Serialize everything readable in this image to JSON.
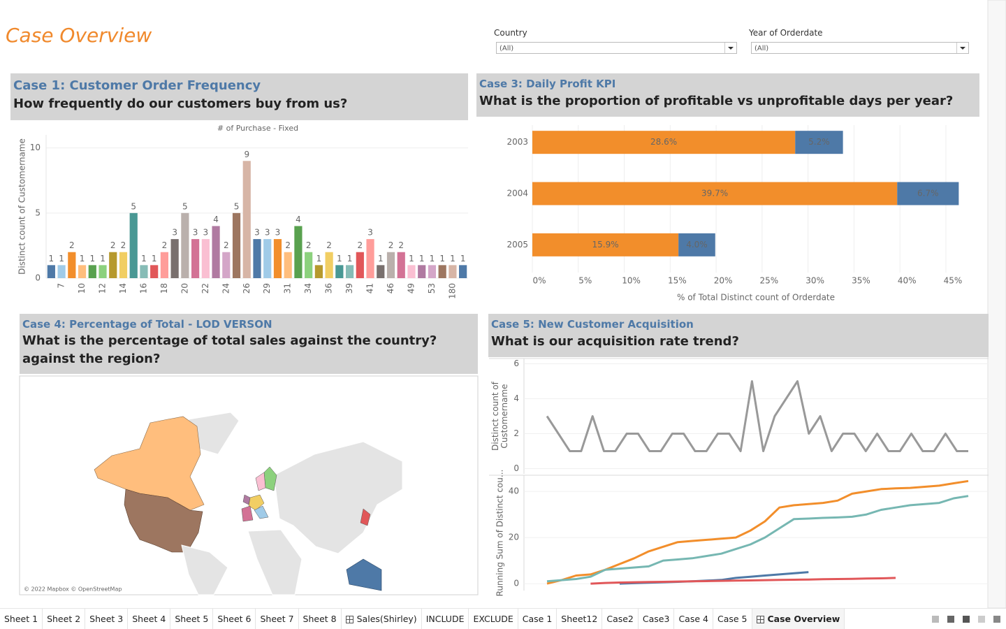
{
  "header": {
    "title": "Case Overview"
  },
  "filters": [
    {
      "label": "Country",
      "value": "(All)"
    },
    {
      "label": "Year of Orderdate",
      "value": "(All)"
    }
  ],
  "panels": [
    {
      "heading": "Case 1: Customer Order Frequency",
      "question": "How frequently do our customers buy from us?"
    },
    {
      "heading": "Case 3: Daily Profit KPI",
      "question": "What is the proportion of profitable vs unprofitable days per year?"
    },
    {
      "heading": "Case 4: Percentage of Total - LOD VERSON",
      "question": "What is the percentage of total sales against the country?against the region?"
    },
    {
      "heading": "Case 5: New Customer Acquisition",
      "question": "What is our acquisition rate trend?"
    }
  ],
  "map": {
    "attribution": "© 2022 Mapbox © OpenStreetMap"
  },
  "chart_data": [
    {
      "type": "bar",
      "title": "# of Purchase - Fixed",
      "y_label": "Distinct count of Customername",
      "categories": [
        null,
        "7",
        null,
        "10",
        null,
        "12",
        null,
        "14",
        null,
        "16",
        null,
        "18",
        null,
        "20",
        null,
        "22",
        null,
        "24",
        null,
        "26",
        null,
        "29",
        null,
        "31",
        null,
        "34",
        null,
        "36",
        null,
        "39",
        null,
        "41",
        null,
        "46",
        null,
        "49",
        null,
        "53",
        null,
        "180",
        null
      ],
      "values": [
        1,
        1,
        2,
        1,
        1,
        1,
        2,
        2,
        5,
        1,
        1,
        2,
        3,
        5,
        3,
        3,
        4,
        2,
        5,
        9,
        3,
        3,
        3,
        2,
        4,
        2,
        1,
        2,
        1,
        1,
        2,
        3,
        1,
        2,
        2,
        1,
        1,
        1,
        1,
        1,
        1
      ],
      "colors": [
        "#4e79a7",
        "#a0cbe8",
        "#f28e2b",
        "#ffbe7d",
        "#59a14f",
        "#8cd17d",
        "#b6992d",
        "#f1ce63",
        "#499894",
        "#86bcb6",
        "#e15759",
        "#ff9d9a",
        "#79706e",
        "#bab0ac",
        "#d37295",
        "#fabfd2",
        "#b07aa1",
        "#d4a6c8",
        "#9d7660",
        "#d7b5a6"
      ],
      "ylim": [
        0,
        11
      ],
      "yticks": [
        0,
        5,
        10
      ],
      "grid": true
    },
    {
      "type": "hbar",
      "x_label": "% of Total Distinct count of Orderdate",
      "categories": [
        "2003",
        "2004",
        "2005"
      ],
      "series": [
        {
          "color": "#f28e2b",
          "label_color": "#000000",
          "values": [
            28.6,
            39.7,
            15.9
          ],
          "value_labels": [
            "28.6%",
            "39.7%",
            "15.9%"
          ]
        },
        {
          "color": "#4e79a7",
          "label_color": "#ffffff",
          "values": [
            5.2,
            6.7,
            4.0
          ],
          "value_labels": [
            "5.2%",
            "6.7%",
            "4.0%"
          ]
        }
      ],
      "xlim": [
        0,
        48.5
      ],
      "xticks": [
        {
          "value": 0,
          "label": "0%"
        },
        {
          "value": 5,
          "label": "5%"
        },
        {
          "value": 10,
          "label": "10%"
        },
        {
          "value": 15,
          "label": "15%"
        },
        {
          "value": 20,
          "label": "20%"
        },
        {
          "value": 25,
          "label": "25%"
        },
        {
          "value": 30,
          "label": "30%"
        },
        {
          "value": 35,
          "label": "35%"
        },
        {
          "value": 40,
          "label": "40%"
        },
        {
          "value": 45,
          "label": "45%"
        }
      ],
      "grid": true
    },
    {
      "type": "line",
      "y_label_lines": [
        "Distinct count of",
        "Customername"
      ],
      "series": [
        {
          "color": "#999999",
          "values": [
            3,
            2,
            1,
            1,
            3,
            1,
            1,
            2,
            2,
            1,
            1,
            2,
            2,
            1,
            1,
            2,
            2,
            1,
            5,
            1,
            3,
            4,
            5,
            2,
            3,
            1,
            2,
            2,
            1,
            2,
            1,
            1,
            2,
            1,
            1,
            2,
            1,
            1
          ]
        }
      ],
      "ylim": [
        -0.3,
        6.3
      ],
      "yticks": [
        0,
        2,
        4,
        6
      ],
      "grid": true
    },
    {
      "type": "line",
      "y_label_lines": [
        "Running Sum of Distinct cou..."
      ],
      "series": [
        {
          "color": "#f28e2b",
          "values": [
            0,
            1.5,
            3.5,
            4,
            6,
            8.5,
            11,
            14,
            16,
            18,
            18.5,
            19,
            19.5,
            20,
            23,
            27,
            33,
            34,
            34.5,
            35,
            36,
            39,
            40,
            41,
            41.3,
            41.5,
            42,
            42.5,
            43.5,
            44.5
          ]
        },
        {
          "color": "#76b7b2",
          "values": [
            1,
            1.5,
            2,
            3,
            6,
            6.5,
            7,
            7.5,
            10,
            10.5,
            11,
            12,
            13,
            15,
            17,
            20,
            24,
            28,
            28.2,
            28.5,
            28.7,
            29,
            30,
            32,
            33,
            34,
            34.5,
            35,
            37,
            38
          ]
        },
        {
          "color": "#4e79a7",
          "values": [
            null,
            null,
            null,
            null,
            null,
            0,
            0.2,
            0.4,
            0.6,
            0.8,
            1,
            1.3,
            1.6,
            2.5,
            3,
            3.5,
            4,
            4.5,
            5,
            null,
            null,
            null,
            null,
            null,
            null,
            null,
            null,
            null,
            null,
            null
          ]
        },
        {
          "color": "#e15759",
          "values": [
            null,
            null,
            null,
            0,
            0.3,
            0.5,
            0.6,
            0.7,
            0.8,
            0.9,
            1,
            1.1,
            1.2,
            1.3,
            1.4,
            1.5,
            1.6,
            1.7,
            1.8,
            1.9,
            2,
            2.1,
            2.2,
            2.3,
            2.5,
            null,
            null,
            null,
            null,
            null
          ]
        }
      ],
      "ylim": [
        -3,
        47
      ],
      "yticks": [
        0,
        20,
        40
      ],
      "grid": true
    }
  ],
  "tabs": [
    {
      "label": "Sheet 1"
    },
    {
      "label": "Sheet 2"
    },
    {
      "label": "Sheet 3"
    },
    {
      "label": "Sheet 4"
    },
    {
      "label": "Sheet 5"
    },
    {
      "label": "Sheet 6"
    },
    {
      "label": "Sheet 7"
    },
    {
      "label": "Sheet 8"
    },
    {
      "label": "Sales(Shirley)",
      "dashboard": true
    },
    {
      "label": "INCLUDE"
    },
    {
      "label": "EXCLUDE"
    },
    {
      "label": "Case 1"
    },
    {
      "label": "Sheet12"
    },
    {
      "label": "Case2"
    },
    {
      "label": "Case3"
    },
    {
      "label": "Case 4"
    },
    {
      "label": "Case 5"
    },
    {
      "label": "Case Overview",
      "dashboard": true,
      "selected": true
    }
  ]
}
